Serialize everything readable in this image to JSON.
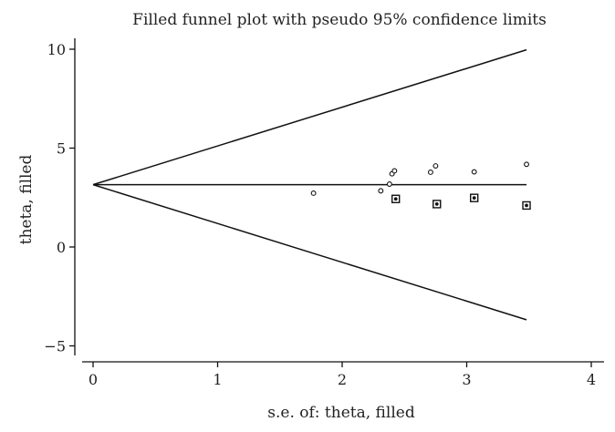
{
  "chart_data": {
    "type": "scatter",
    "title": "Filled funnel plot with pseudo 95% confidence limits",
    "xlabel": "s.e. of: theta, filled",
    "ylabel": "theta, filled",
    "xlim": [
      0,
      4
    ],
    "ylim": [
      -5,
      10
    ],
    "xticks": [
      "0",
      "1",
      "2",
      "3",
      "4"
    ],
    "yticks": [
      "10",
      "5",
      "0",
      "−5"
    ],
    "pooled_estimate": 3.15,
    "confidence_limits": {
      "upper": [
        [
          0,
          3.15
        ],
        [
          3.48,
          9.97
        ]
      ],
      "lower": [
        [
          0,
          3.15
        ],
        [
          3.48,
          -3.68
        ]
      ]
    },
    "series": [
      {
        "marker": "circle",
        "points": [
          [
            1.77,
            2.72
          ],
          [
            2.31,
            2.84
          ],
          [
            2.38,
            3.18
          ],
          [
            2.4,
            3.7
          ],
          [
            2.42,
            3.85
          ],
          [
            2.71,
            3.78
          ],
          [
            2.75,
            4.1
          ],
          [
            3.06,
            3.8
          ],
          [
            3.48,
            4.18
          ]
        ]
      },
      {
        "marker": "square",
        "points": [
          [
            2.43,
            2.43
          ],
          [
            2.76,
            2.17
          ],
          [
            3.06,
            2.48
          ],
          [
            3.48,
            2.1
          ]
        ]
      }
    ]
  }
}
